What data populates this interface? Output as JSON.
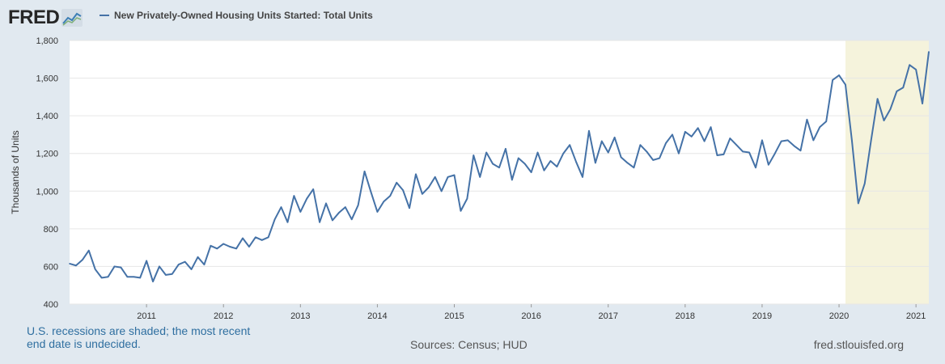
{
  "brand": {
    "logo_text": "FRED",
    "logo_icon": "line-chart-icon"
  },
  "legend": {
    "series_label": "New Privately-Owned Housing Units Started: Total Units"
  },
  "footer": {
    "note": "U.S. recessions are shaded; the most recent end date is undecided.",
    "sources": "Sources: Census; HUD",
    "site": "fred.stlouisfed.org"
  },
  "colors": {
    "line": "#4572a7",
    "recession": "#f5f3dc",
    "background": "#e1e9f0"
  },
  "chart_data": {
    "type": "line",
    "title": "New Privately-Owned Housing Units Started: Total Units",
    "ylabel": "Thousands of Units",
    "xlabel": "",
    "ylim": [
      400,
      1800
    ],
    "yticks": [
      "400",
      "600",
      "800",
      "1,000",
      "1,200",
      "1,400",
      "1,600",
      "1,800"
    ],
    "xticks": [
      "2011",
      "2012",
      "2013",
      "2014",
      "2015",
      "2016",
      "2017",
      "2018",
      "2019",
      "2020",
      "2021"
    ],
    "grid": true,
    "x_start": "2010-01",
    "x_end": "2021-03",
    "recession": {
      "start": "2020-02",
      "end": "2021-03"
    },
    "series": [
      {
        "values": [
          615,
          605,
          635,
          685,
          585,
          540,
          545,
          600,
          595,
          545,
          545,
          540,
          630,
          520,
          600,
          555,
          560,
          610,
          625,
          585,
          650,
          610,
          710,
          695,
          720,
          705,
          695,
          750,
          705,
          755,
          740,
          755,
          850,
          915,
          835,
          975,
          890,
          960,
          1010,
          835,
          935,
          845,
          885,
          915,
          850,
          925,
          1105,
          995,
          890,
          945,
          975,
          1045,
          1005,
          910,
          1090,
          985,
          1020,
          1075,
          1000,
          1075,
          1085,
          895,
          960,
          1190,
          1075,
          1205,
          1145,
          1125,
          1225,
          1060,
          1175,
          1145,
          1100,
          1205,
          1110,
          1160,
          1130,
          1200,
          1245,
          1155,
          1075,
          1320,
          1150,
          1265,
          1205,
          1285,
          1180,
          1150,
          1125,
          1245,
          1210,
          1165,
          1175,
          1255,
          1300,
          1200,
          1315,
          1290,
          1335,
          1265,
          1340,
          1190,
          1195,
          1280,
          1245,
          1210,
          1205,
          1125,
          1270,
          1140,
          1200,
          1265,
          1270,
          1240,
          1215,
          1380,
          1270,
          1340,
          1370,
          1590,
          1615,
          1565,
          1270,
          935,
          1040,
          1270,
          1490,
          1375,
          1435,
          1530,
          1550,
          1670,
          1645,
          1465,
          1740
        ]
      }
    ]
  }
}
